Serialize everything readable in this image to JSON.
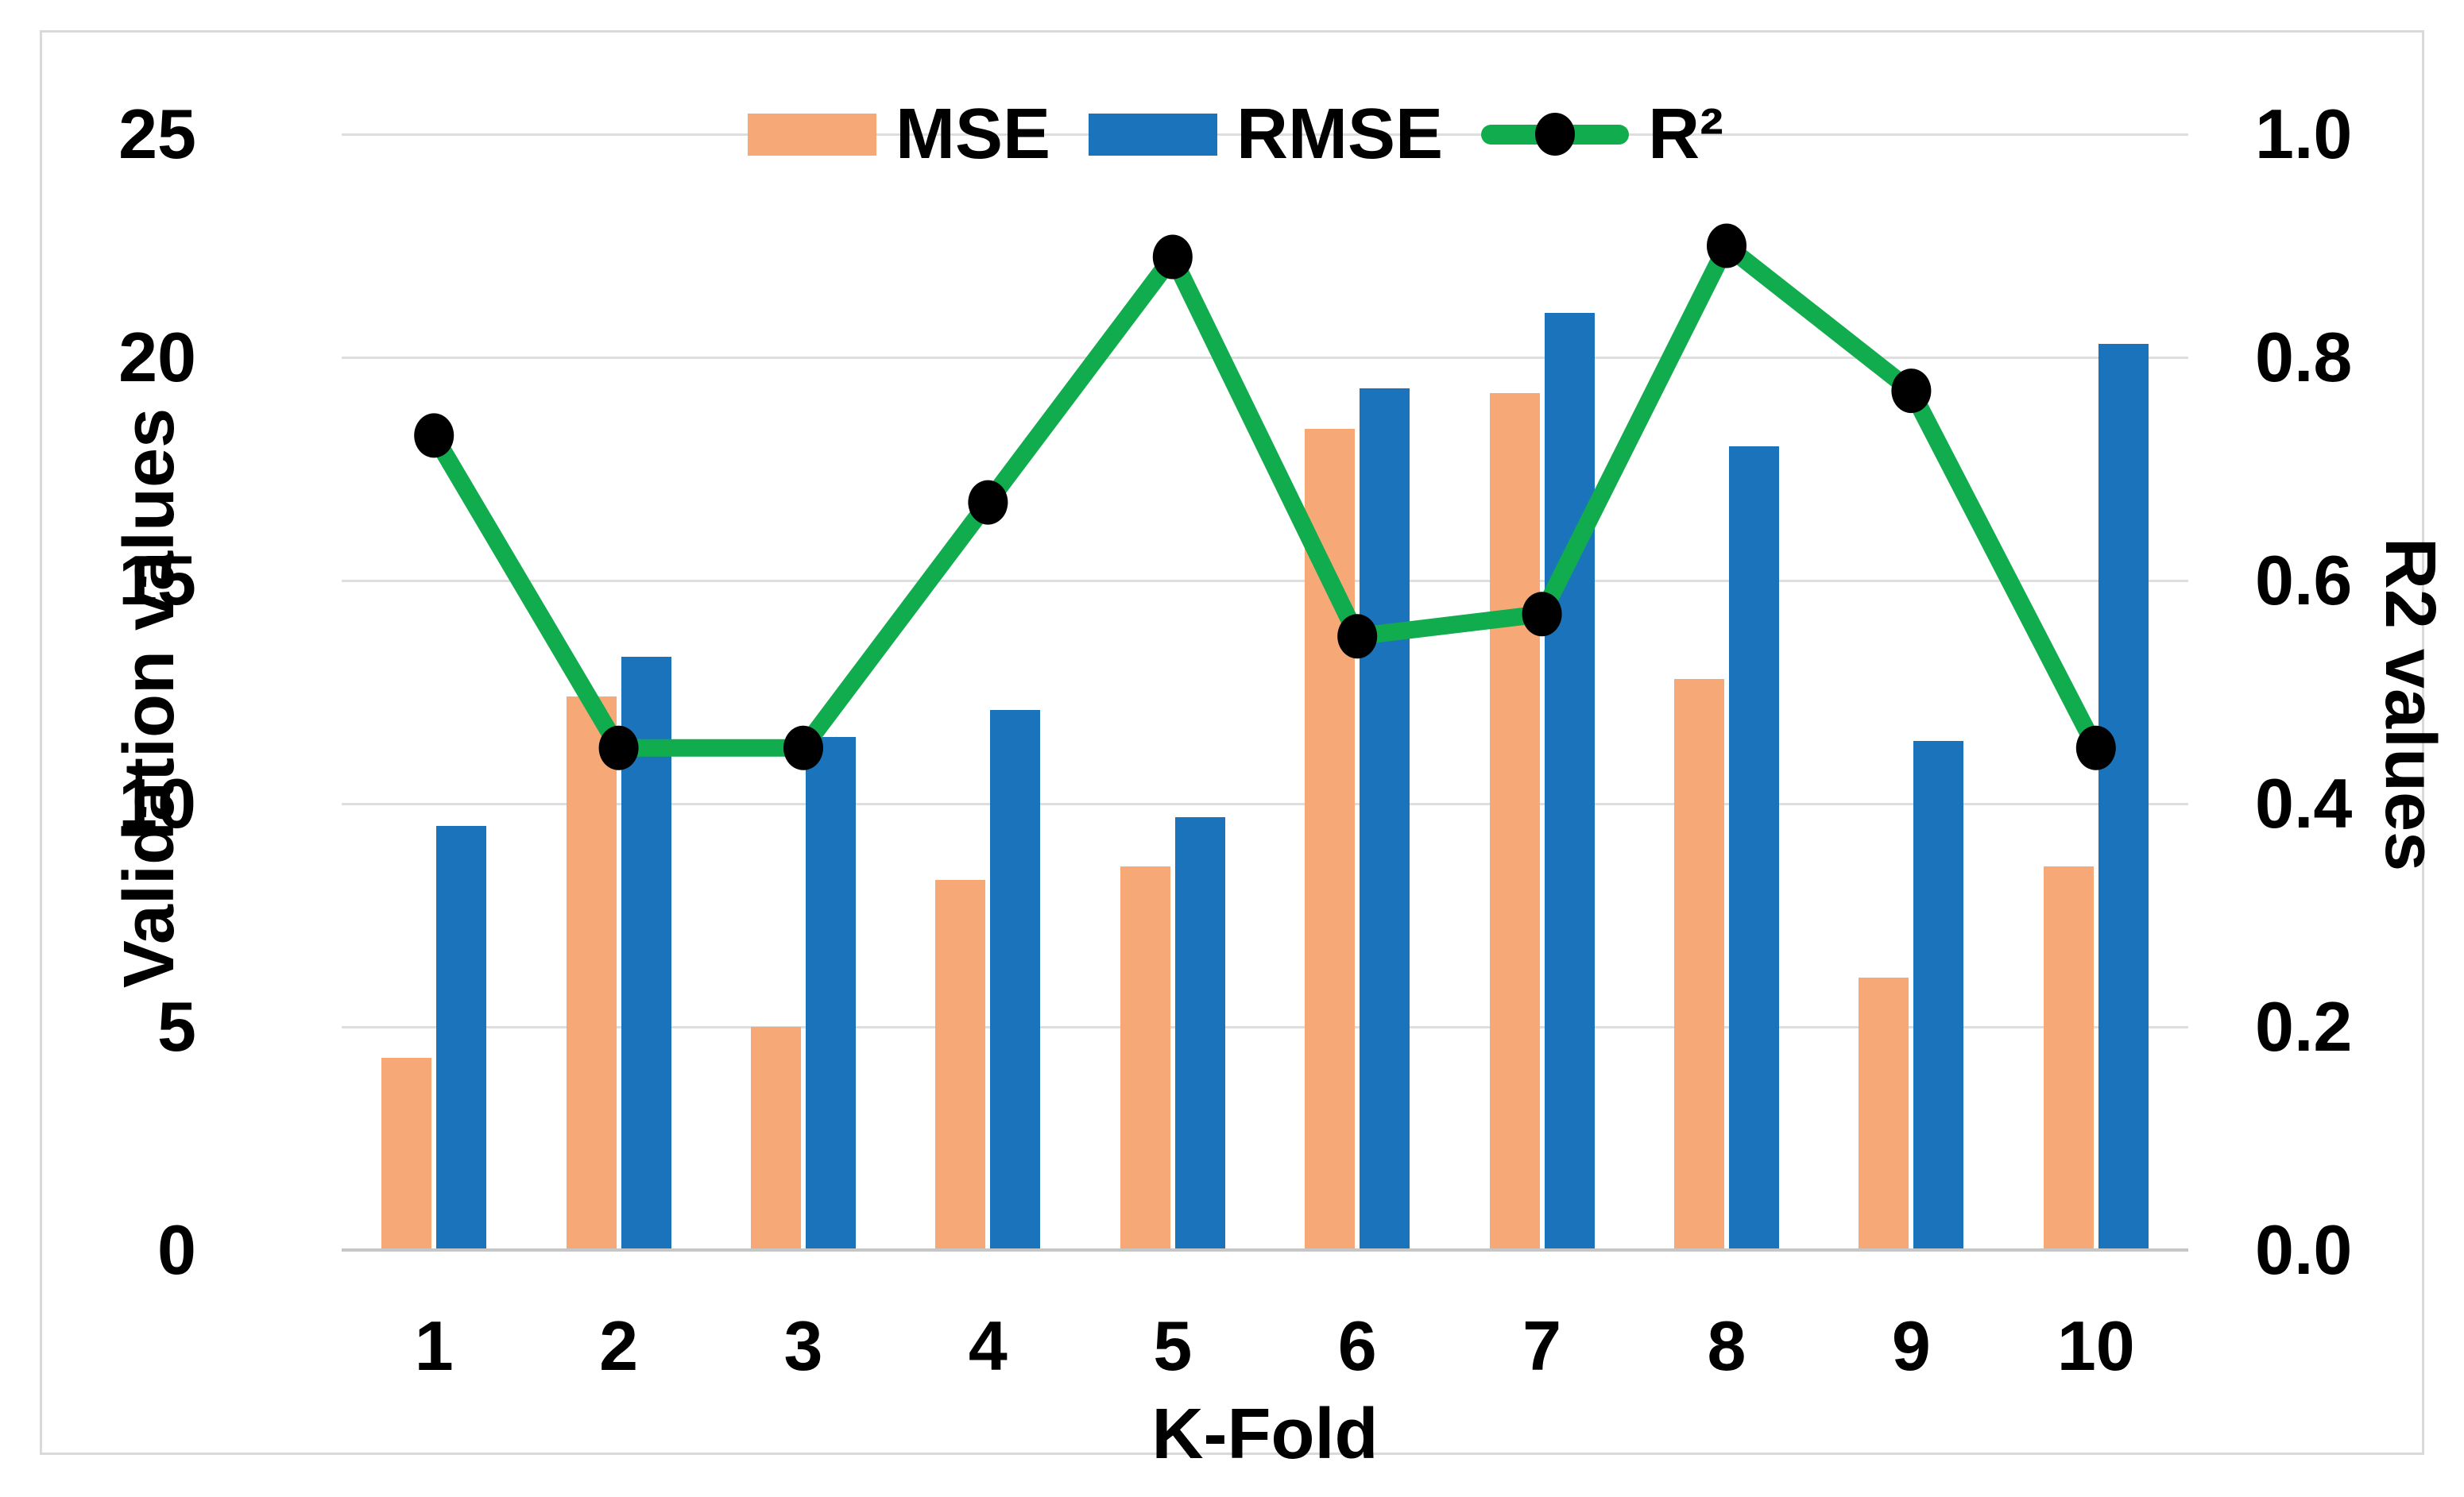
{
  "chart_data": {
    "type": "combo-bar-line",
    "categories": [
      "1",
      "2",
      "3",
      "4",
      "5",
      "6",
      "7",
      "8",
      "9",
      "10"
    ],
    "series": [
      {
        "name": "MSE",
        "type": "bar",
        "axis": "left",
        "color": "#f7a877",
        "values": [
          4.3,
          12.4,
          5.0,
          8.3,
          8.6,
          18.4,
          19.2,
          12.8,
          6.1,
          8.6
        ]
      },
      {
        "name": "RMSE",
        "type": "bar",
        "axis": "left",
        "color": "#1b74bb",
        "values": [
          9.5,
          13.3,
          11.5,
          12.1,
          9.7,
          19.3,
          21.0,
          18.0,
          11.4,
          20.3
        ]
      },
      {
        "name": "R²",
        "type": "line",
        "axis": "right",
        "color": "#11ac4e",
        "marker_color": "#000000",
        "values": [
          0.73,
          0.45,
          0.45,
          0.67,
          0.89,
          0.55,
          0.57,
          0.9,
          0.77,
          0.45
        ]
      }
    ],
    "left_axis": {
      "title": "Validation values",
      "min": 0,
      "max": 25,
      "tick_labels": [
        "0",
        "5",
        "10",
        "15",
        "20",
        "25"
      ],
      "tick_values": [
        0,
        5,
        10,
        15,
        20,
        25
      ]
    },
    "right_axis": {
      "title": "R2 values",
      "min": 0.0,
      "max": 1.0,
      "tick_labels": [
        "0.0",
        "0.2",
        "0.4",
        "0.6",
        "0.8",
        "1.0"
      ],
      "tick_values": [
        0.0,
        0.2,
        0.4,
        0.6,
        0.8,
        1.0
      ]
    },
    "x_axis": {
      "title": "K-Fold"
    },
    "legend": {
      "position": "top",
      "labels": [
        "MSE",
        "RMSE",
        "R²"
      ]
    },
    "grid": true,
    "colors": {
      "mse_bar": "#f7a877",
      "rmse_bar": "#1b74bb",
      "r2_line": "#11ac4e",
      "marker": "#000000",
      "gridline": "#dedede",
      "axis_line": "#c6c6c6",
      "frame_border": "#d9d9d9",
      "background": "#ffffff",
      "text": "#000000"
    }
  }
}
